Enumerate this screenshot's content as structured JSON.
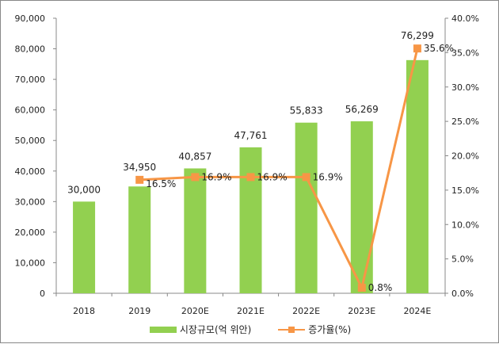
{
  "chart_data": {
    "type": "bar+line",
    "categories": [
      "2018",
      "2019",
      "2020E",
      "2021E",
      "2022E",
      "2023E",
      "2024E"
    ],
    "series": [
      {
        "name": "시장규모(억 위안)",
        "type": "bar",
        "axis": "left",
        "color": "#92d050",
        "values": [
          30000,
          34950,
          40857,
          47761,
          55833,
          56269,
          76299
        ],
        "labels": [
          "30,000",
          "34,950",
          "40,857",
          "47,761",
          "55,833",
          "56,269",
          "76,299"
        ]
      },
      {
        "name": "증가율(%)",
        "type": "line",
        "axis": "right",
        "color": "#f79646",
        "values": [
          null,
          16.5,
          16.9,
          16.9,
          16.9,
          0.8,
          35.6
        ],
        "labels": [
          "",
          "16.5%",
          "16.9%",
          "16.9%",
          "16.9%",
          "0.8%",
          "35.6%"
        ]
      }
    ],
    "ylim_left": [
      0,
      90000
    ],
    "yticks_left": [
      "0",
      "10,000",
      "20,000",
      "30,000",
      "40,000",
      "50,000",
      "60,000",
      "70,000",
      "80,000",
      "90,000"
    ],
    "ylim_right": [
      0,
      40
    ],
    "yticks_right": [
      "0.0%",
      "5.0%",
      "10.0%",
      "15.0%",
      "20.0%",
      "25.0%",
      "30.0%",
      "35.0%",
      "40.0%"
    ],
    "grid": false,
    "legend": "bottom"
  }
}
